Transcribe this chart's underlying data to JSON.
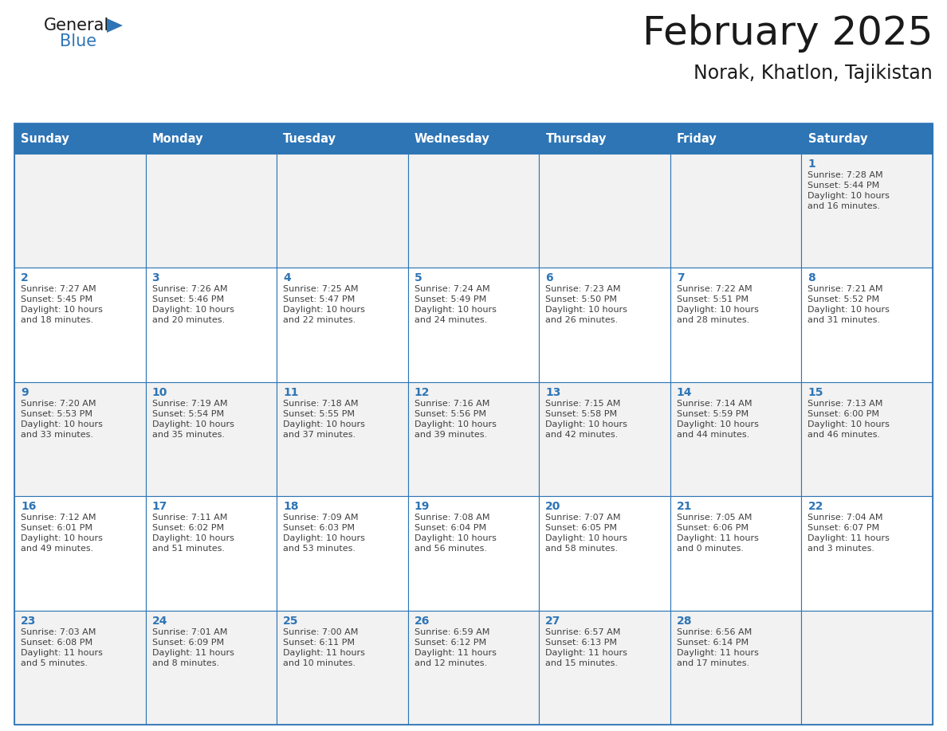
{
  "title": "February 2025",
  "subtitle": "Norak, Khatlon, Tajikistan",
  "days_of_week": [
    "Sunday",
    "Monday",
    "Tuesday",
    "Wednesday",
    "Thursday",
    "Friday",
    "Saturday"
  ],
  "header_bg": "#2E75B6",
  "header_text": "#FFFFFF",
  "cell_bg_odd": "#F2F2F2",
  "cell_bg_even": "#FFFFFF",
  "border_color": "#2E75B6",
  "day_num_color": "#2E75B6",
  "cell_text_color": "#404040",
  "title_color": "#1a1a1a",
  "logo_general_color": "#1a1a1a",
  "logo_blue_color": "#2E75B6",
  "calendar": [
    [
      null,
      null,
      null,
      null,
      null,
      null,
      {
        "day": 1,
        "sunrise": "7:28 AM",
        "sunset": "5:44 PM",
        "daylight": "10 hours",
        "daylight2": "and 16 minutes."
      }
    ],
    [
      {
        "day": 2,
        "sunrise": "7:27 AM",
        "sunset": "5:45 PM",
        "daylight": "10 hours",
        "daylight2": "and 18 minutes."
      },
      {
        "day": 3,
        "sunrise": "7:26 AM",
        "sunset": "5:46 PM",
        "daylight": "10 hours",
        "daylight2": "and 20 minutes."
      },
      {
        "day": 4,
        "sunrise": "7:25 AM",
        "sunset": "5:47 PM",
        "daylight": "10 hours",
        "daylight2": "and 22 minutes."
      },
      {
        "day": 5,
        "sunrise": "7:24 AM",
        "sunset": "5:49 PM",
        "daylight": "10 hours",
        "daylight2": "and 24 minutes."
      },
      {
        "day": 6,
        "sunrise": "7:23 AM",
        "sunset": "5:50 PM",
        "daylight": "10 hours",
        "daylight2": "and 26 minutes."
      },
      {
        "day": 7,
        "sunrise": "7:22 AM",
        "sunset": "5:51 PM",
        "daylight": "10 hours",
        "daylight2": "and 28 minutes."
      },
      {
        "day": 8,
        "sunrise": "7:21 AM",
        "sunset": "5:52 PM",
        "daylight": "10 hours",
        "daylight2": "and 31 minutes."
      }
    ],
    [
      {
        "day": 9,
        "sunrise": "7:20 AM",
        "sunset": "5:53 PM",
        "daylight": "10 hours",
        "daylight2": "and 33 minutes."
      },
      {
        "day": 10,
        "sunrise": "7:19 AM",
        "sunset": "5:54 PM",
        "daylight": "10 hours",
        "daylight2": "and 35 minutes."
      },
      {
        "day": 11,
        "sunrise": "7:18 AM",
        "sunset": "5:55 PM",
        "daylight": "10 hours",
        "daylight2": "and 37 minutes."
      },
      {
        "day": 12,
        "sunrise": "7:16 AM",
        "sunset": "5:56 PM",
        "daylight": "10 hours",
        "daylight2": "and 39 minutes."
      },
      {
        "day": 13,
        "sunrise": "7:15 AM",
        "sunset": "5:58 PM",
        "daylight": "10 hours",
        "daylight2": "and 42 minutes."
      },
      {
        "day": 14,
        "sunrise": "7:14 AM",
        "sunset": "5:59 PM",
        "daylight": "10 hours",
        "daylight2": "and 44 minutes."
      },
      {
        "day": 15,
        "sunrise": "7:13 AM",
        "sunset": "6:00 PM",
        "daylight": "10 hours",
        "daylight2": "and 46 minutes."
      }
    ],
    [
      {
        "day": 16,
        "sunrise": "7:12 AM",
        "sunset": "6:01 PM",
        "daylight": "10 hours",
        "daylight2": "and 49 minutes."
      },
      {
        "day": 17,
        "sunrise": "7:11 AM",
        "sunset": "6:02 PM",
        "daylight": "10 hours",
        "daylight2": "and 51 minutes."
      },
      {
        "day": 18,
        "sunrise": "7:09 AM",
        "sunset": "6:03 PM",
        "daylight": "10 hours",
        "daylight2": "and 53 minutes."
      },
      {
        "day": 19,
        "sunrise": "7:08 AM",
        "sunset": "6:04 PM",
        "daylight": "10 hours",
        "daylight2": "and 56 minutes."
      },
      {
        "day": 20,
        "sunrise": "7:07 AM",
        "sunset": "6:05 PM",
        "daylight": "10 hours",
        "daylight2": "and 58 minutes."
      },
      {
        "day": 21,
        "sunrise": "7:05 AM",
        "sunset": "6:06 PM",
        "daylight": "11 hours",
        "daylight2": "and 0 minutes."
      },
      {
        "day": 22,
        "sunrise": "7:04 AM",
        "sunset": "6:07 PM",
        "daylight": "11 hours",
        "daylight2": "and 3 minutes."
      }
    ],
    [
      {
        "day": 23,
        "sunrise": "7:03 AM",
        "sunset": "6:08 PM",
        "daylight": "11 hours",
        "daylight2": "and 5 minutes."
      },
      {
        "day": 24,
        "sunrise": "7:01 AM",
        "sunset": "6:09 PM",
        "daylight": "11 hours",
        "daylight2": "and 8 minutes."
      },
      {
        "day": 25,
        "sunrise": "7:00 AM",
        "sunset": "6:11 PM",
        "daylight": "11 hours",
        "daylight2": "and 10 minutes."
      },
      {
        "day": 26,
        "sunrise": "6:59 AM",
        "sunset": "6:12 PM",
        "daylight": "11 hours",
        "daylight2": "and 12 minutes."
      },
      {
        "day": 27,
        "sunrise": "6:57 AM",
        "sunset": "6:13 PM",
        "daylight": "11 hours",
        "daylight2": "and 15 minutes."
      },
      {
        "day": 28,
        "sunrise": "6:56 AM",
        "sunset": "6:14 PM",
        "daylight": "11 hours",
        "daylight2": "and 17 minutes."
      },
      null
    ]
  ]
}
